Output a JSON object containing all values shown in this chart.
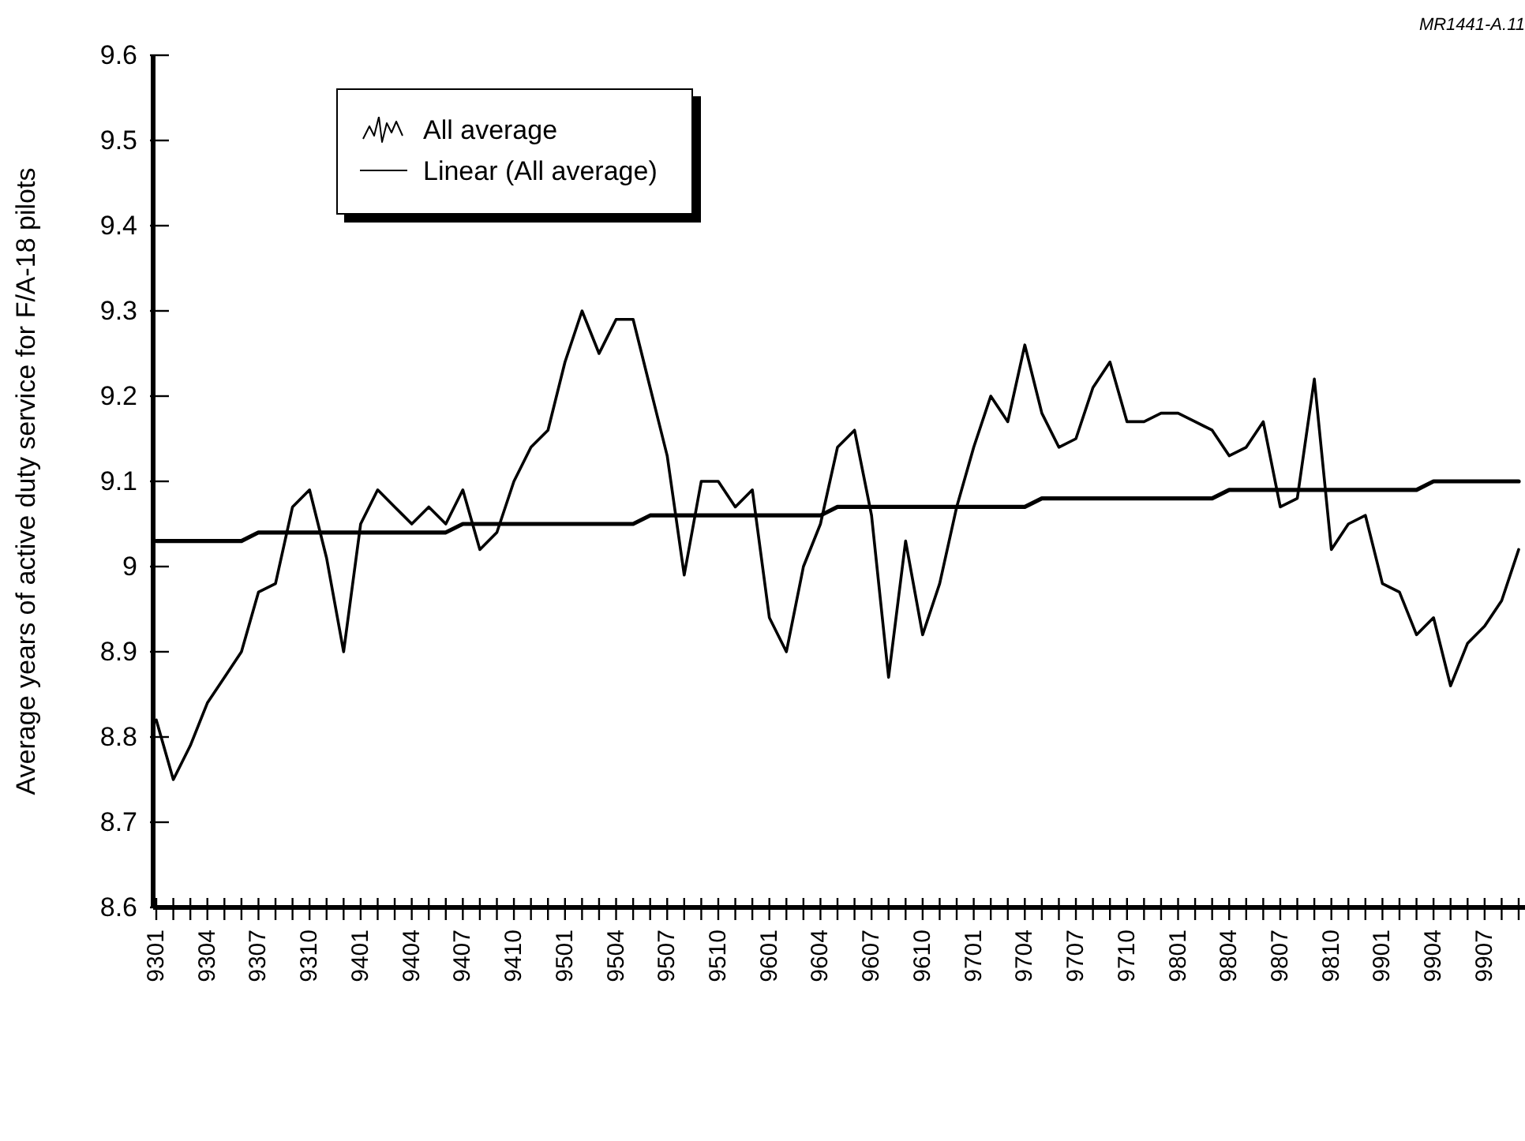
{
  "chart_data": {
    "type": "line",
    "ylabel": "Average years of active duty service for F/A-18 pilots",
    "annotations": [
      "MR1441-A.11"
    ],
    "categories": [
      "9301",
      null,
      null,
      "9304",
      null,
      null,
      "9307",
      null,
      null,
      "9310",
      null,
      null,
      "9401",
      null,
      null,
      "9404",
      null,
      null,
      "9407",
      null,
      null,
      "9410",
      null,
      null,
      "9501",
      null,
      null,
      "9504",
      null,
      null,
      "9507",
      null,
      null,
      "9510",
      null,
      null,
      "9601",
      null,
      null,
      "9604",
      null,
      null,
      "9607",
      null,
      null,
      "9610",
      null,
      null,
      "9701",
      null,
      null,
      "9704",
      null,
      null,
      "9707",
      null,
      null,
      "9710",
      null,
      null,
      "9801",
      null,
      null,
      "9804",
      null,
      null,
      "9807",
      null,
      null,
      "9810",
      null,
      null,
      "9901",
      null,
      null,
      "9904",
      null,
      null,
      "9907",
      null,
      null
    ],
    "series": [
      {
        "name": "All average",
        "color": "#000000",
        "values": [
          8.82,
          8.75,
          8.79,
          8.84,
          8.87,
          8.9,
          8.97,
          8.98,
          9.07,
          9.09,
          9.01,
          8.9,
          9.05,
          9.09,
          9.07,
          9.05,
          9.07,
          9.05,
          9.09,
          9.02,
          9.04,
          9.1,
          9.14,
          9.16,
          9.24,
          9.3,
          9.25,
          9.29,
          9.29,
          9.21,
          9.13,
          8.99,
          9.1,
          9.1,
          9.07,
          9.09,
          8.94,
          8.9,
          9.0,
          9.05,
          9.14,
          9.16,
          9.06,
          8.87,
          9.03,
          8.92,
          8.98,
          9.07,
          9.14,
          9.2,
          9.17,
          9.26,
          9.18,
          9.14,
          9.15,
          9.21,
          9.24,
          9.17,
          9.17,
          9.18,
          9.18,
          9.17,
          9.16,
          9.13,
          9.14,
          9.17,
          9.07,
          9.08,
          9.22,
          9.02,
          9.05,
          9.06,
          8.98,
          8.97,
          8.92,
          8.94,
          8.86,
          8.91,
          8.93,
          8.96,
          9.02
        ]
      },
      {
        "name": "Linear (All average)",
        "color": "#000000",
        "values": [
          9.03,
          9.03,
          9.03,
          9.03,
          9.03,
          9.03,
          9.04,
          9.04,
          9.04,
          9.04,
          9.04,
          9.04,
          9.04,
          9.04,
          9.04,
          9.04,
          9.04,
          9.04,
          9.05,
          9.05,
          9.05,
          9.05,
          9.05,
          9.05,
          9.05,
          9.05,
          9.05,
          9.05,
          9.05,
          9.06,
          9.06,
          9.06,
          9.06,
          9.06,
          9.06,
          9.06,
          9.06,
          9.06,
          9.06,
          9.06,
          9.07,
          9.07,
          9.07,
          9.07,
          9.07,
          9.07,
          9.07,
          9.07,
          9.07,
          9.07,
          9.07,
          9.07,
          9.08,
          9.08,
          9.08,
          9.08,
          9.08,
          9.08,
          9.08,
          9.08,
          9.08,
          9.08,
          9.08,
          9.09,
          9.09,
          9.09,
          9.09,
          9.09,
          9.09,
          9.09,
          9.09,
          9.09,
          9.09,
          9.09,
          9.09,
          9.1,
          9.1,
          9.1,
          9.1,
          9.1,
          9.1
        ]
      }
    ],
    "ylim": [
      8.6,
      9.6
    ],
    "yticks": [
      8.6,
      8.7,
      8.8,
      8.9,
      9,
      9.1,
      9.2,
      9.3,
      9.4,
      9.5,
      9.6
    ],
    "legend": "top left"
  }
}
